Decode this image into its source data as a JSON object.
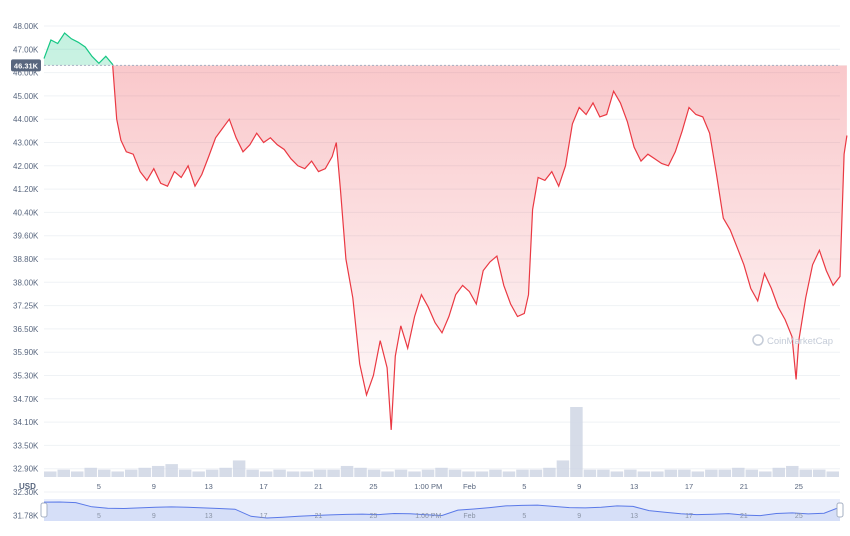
{
  "colors": {
    "up": "#16c784",
    "down": "#ea3943",
    "grid": "#eff2f5",
    "axis_text": "#58667e",
    "volume": "#cfd6e4",
    "navigator_line": "#5a79e8",
    "navigator_fill": "#e8edfb",
    "ref_badge": "#58667e"
  },
  "chart_data": {
    "type": "area",
    "currency_label": "USD",
    "watermark": "CoinMarketCap",
    "reference_price_label": "46.31K",
    "reference_price": 46310,
    "y_ticks": [
      "48.00K",
      "47.00K",
      "46.00K",
      "45.00K",
      "44.00K",
      "43.00K",
      "42.00K",
      "41.20K",
      "40.40K",
      "39.60K",
      "38.80K",
      "38.00K",
      "37.25K",
      "36.50K",
      "35.90K",
      "35.30K",
      "34.70K",
      "34.10K",
      "33.50K",
      "32.90K",
      "32.30K",
      "31.78K"
    ],
    "x_ticks": [
      "5",
      "9",
      "13",
      "17",
      "21",
      "25",
      "1:00 PM",
      "Feb",
      "5",
      "9",
      "13",
      "17",
      "21",
      "25"
    ],
    "ylim": [
      31780,
      48000
    ],
    "x_index_range": [
      0,
      58
    ],
    "x_tick_positions": [
      4,
      8,
      12,
      16,
      20,
      24,
      28,
      31,
      35,
      39,
      43,
      47,
      51,
      55
    ],
    "price_series": [
      [
        0,
        46600
      ],
      [
        0.5,
        47400
      ],
      [
        1,
        47250
      ],
      [
        1.5,
        47700
      ],
      [
        2,
        47450
      ],
      [
        2.5,
        47300
      ],
      [
        3,
        47100
      ],
      [
        3.5,
        46700
      ],
      [
        4,
        46400
      ],
      [
        4.5,
        46700
      ],
      [
        5,
        46350
      ],
      [
        5.3,
        44000
      ],
      [
        5.6,
        43100
      ],
      [
        6,
        42600
      ],
      [
        6.5,
        42500
      ],
      [
        7,
        41800
      ],
      [
        7.5,
        41500
      ],
      [
        8,
        41900
      ],
      [
        8.5,
        41400
      ],
      [
        9,
        41300
      ],
      [
        9.5,
        41800
      ],
      [
        10,
        41600
      ],
      [
        10.5,
        42000
      ],
      [
        11,
        41300
      ],
      [
        11.5,
        41700
      ],
      [
        12,
        42400
      ],
      [
        12.5,
        43200
      ],
      [
        13,
        43600
      ],
      [
        13.5,
        44000
      ],
      [
        14,
        43200
      ],
      [
        14.5,
        42600
      ],
      [
        15,
        42900
      ],
      [
        15.5,
        43400
      ],
      [
        16,
        43000
      ],
      [
        16.5,
        43200
      ],
      [
        17,
        42900
      ],
      [
        17.5,
        42700
      ],
      [
        18,
        42300
      ],
      [
        18.5,
        42000
      ],
      [
        19,
        41900
      ],
      [
        19.5,
        42200
      ],
      [
        20,
        41800
      ],
      [
        20.5,
        41900
      ],
      [
        21,
        42400
      ],
      [
        21.3,
        43000
      ],
      [
        21.6,
        41200
      ],
      [
        22,
        38800
      ],
      [
        22.5,
        37500
      ],
      [
        23,
        35600
      ],
      [
        23.5,
        34800
      ],
      [
        24,
        35300
      ],
      [
        24.5,
        36200
      ],
      [
        25,
        35500
      ],
      [
        25.3,
        33900
      ],
      [
        25.6,
        35800
      ],
      [
        26,
        36600
      ],
      [
        26.5,
        36000
      ],
      [
        27,
        36900
      ],
      [
        27.5,
        37600
      ],
      [
        28,
        37200
      ],
      [
        28.5,
        36700
      ],
      [
        29,
        36400
      ],
      [
        29.5,
        36900
      ],
      [
        30,
        37600
      ],
      [
        30.5,
        37900
      ],
      [
        31,
        37700
      ],
      [
        31.5,
        37300
      ],
      [
        32,
        38400
      ],
      [
        32.5,
        38700
      ],
      [
        33,
        38900
      ],
      [
        33.5,
        37900
      ],
      [
        34,
        37300
      ],
      [
        34.5,
        36900
      ],
      [
        35,
        37000
      ],
      [
        35.3,
        37600
      ],
      [
        35.6,
        40500
      ],
      [
        36,
        41600
      ],
      [
        36.5,
        41500
      ],
      [
        37,
        41800
      ],
      [
        37.5,
        41300
      ],
      [
        38,
        42000
      ],
      [
        38.5,
        43800
      ],
      [
        39,
        44500
      ],
      [
        39.5,
        44200
      ],
      [
        40,
        44700
      ],
      [
        40.5,
        44100
      ],
      [
        41,
        44200
      ],
      [
        41.5,
        45200
      ],
      [
        42,
        44700
      ],
      [
        42.5,
        43900
      ],
      [
        43,
        42800
      ],
      [
        43.5,
        42200
      ],
      [
        44,
        42500
      ],
      [
        44.5,
        42300
      ],
      [
        45,
        42100
      ],
      [
        45.5,
        42000
      ],
      [
        46,
        42600
      ],
      [
        46.5,
        43500
      ],
      [
        47,
        44500
      ],
      [
        47.5,
        44200
      ],
      [
        48,
        44100
      ],
      [
        48.5,
        43400
      ],
      [
        49,
        41700
      ],
      [
        49.5,
        40200
      ],
      [
        50,
        39800
      ],
      [
        50.5,
        39200
      ],
      [
        51,
        38600
      ],
      [
        51.5,
        37800
      ],
      [
        52,
        37400
      ],
      [
        52.5,
        38300
      ],
      [
        53,
        37800
      ],
      [
        53.5,
        37200
      ],
      [
        54,
        36800
      ],
      [
        54.5,
        36300
      ],
      [
        54.8,
        35200
      ],
      [
        55,
        36200
      ],
      [
        55.5,
        37500
      ],
      [
        56,
        38600
      ],
      [
        56.5,
        39100
      ],
      [
        57,
        38400
      ],
      [
        57.5,
        37900
      ],
      [
        58,
        38200
      ],
      [
        58.3,
        42500
      ],
      [
        58.5,
        43300
      ]
    ],
    "volume_series": [
      3,
      4,
      3,
      5,
      4,
      3,
      4,
      5,
      6,
      7,
      4,
      3,
      4,
      5,
      9,
      4,
      3,
      4,
      3,
      3,
      4,
      4,
      6,
      5,
      4,
      3,
      4,
      3,
      4,
      5,
      4,
      3,
      3,
      4,
      3,
      4,
      4,
      5,
      9,
      38,
      4,
      4,
      3,
      4,
      3,
      3,
      4,
      4,
      3,
      4,
      4,
      5,
      4,
      3,
      5,
      6,
      4,
      4,
      3
    ],
    "navigator_series": [
      46.5,
      46.6,
      46.2,
      43.2,
      42.1,
      42.0,
      42.4,
      42.9,
      43.1,
      42.8,
      42.4,
      42.0,
      41.5,
      36.4,
      35.2,
      35.8,
      36.4,
      37.0,
      37.4,
      37.8,
      38.0,
      37.6,
      38.4,
      38.2,
      37.5,
      37.0,
      40.8,
      41.6,
      42.6,
      43.8,
      44.2,
      44.4,
      43.5,
      42.6,
      42.4,
      42.9,
      43.8,
      43.5,
      40.5,
      39.3,
      38.2,
      37.6,
      37.9,
      38.3,
      37.3,
      36.9,
      38.4,
      38.8,
      38.1,
      38.6,
      43.0
    ]
  }
}
